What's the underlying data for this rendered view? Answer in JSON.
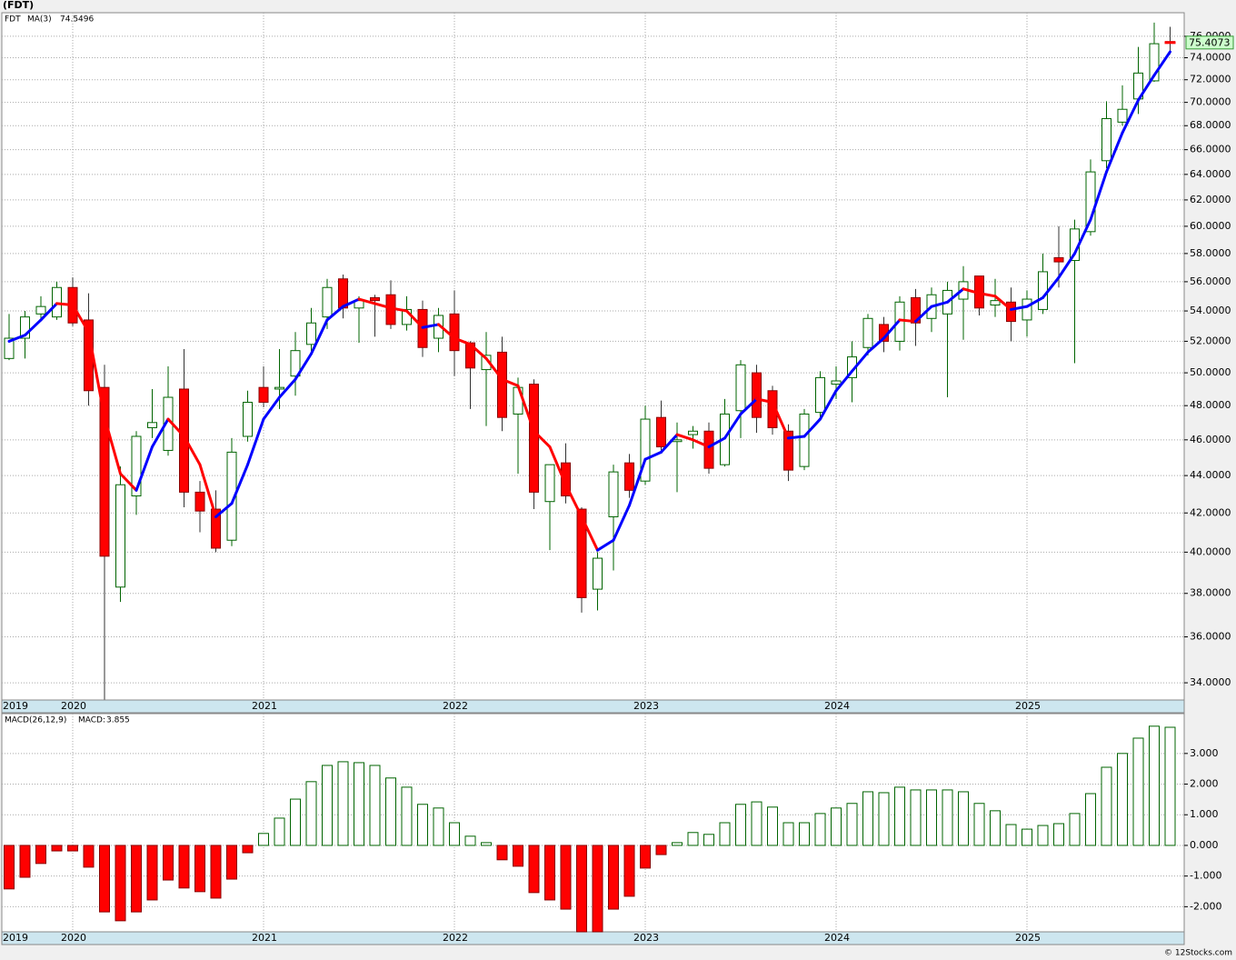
{
  "chart_data": [
    {
      "type": "candlestick",
      "title": "(FDT)",
      "log": true,
      "grid": true,
      "categories": [
        "2019",
        null,
        null,
        null,
        "2020",
        null,
        null,
        null,
        null,
        null,
        null,
        null,
        null,
        null,
        null,
        null,
        "2021",
        null,
        null,
        null,
        null,
        null,
        null,
        null,
        null,
        null,
        null,
        null,
        "2022",
        null,
        null,
        null,
        null,
        null,
        null,
        null,
        null,
        null,
        null,
        null,
        "2023",
        null,
        null,
        null,
        null,
        null,
        null,
        null,
        null,
        null,
        null,
        null,
        "2024",
        null,
        null,
        null,
        null,
        null,
        null,
        null,
        null,
        null,
        null,
        null,
        "2025",
        null,
        null,
        null,
        null,
        null,
        null,
        null,
        null,
        null
      ],
      "ylim": [
        33.28,
        78.26
      ],
      "yticks": [
        {
          "value": 34,
          "label": "34.0000"
        },
        {
          "value": 36,
          "label": "36.0000"
        },
        {
          "value": 38,
          "label": "38.0000"
        },
        {
          "value": 40,
          "label": "40.0000"
        },
        {
          "value": 42,
          "label": "42.0000"
        },
        {
          "value": 44,
          "label": "44.0000"
        },
        {
          "value": 46,
          "label": "46.0000"
        },
        {
          "value": 48,
          "label": "48.0000"
        },
        {
          "value": 50,
          "label": "50.0000"
        },
        {
          "value": 52,
          "label": "52.0000"
        },
        {
          "value": 54,
          "label": "54.0000"
        },
        {
          "value": 56,
          "label": "56.0000"
        },
        {
          "value": 58,
          "label": "58.0000"
        },
        {
          "value": 60,
          "label": "60.0000"
        },
        {
          "value": 62,
          "label": "62.0000"
        },
        {
          "value": 64,
          "label": "64.0000"
        },
        {
          "value": 66,
          "label": "66.0000"
        },
        {
          "value": 68,
          "label": "68.0000"
        },
        {
          "value": 70,
          "label": "70.0000"
        },
        {
          "value": 72,
          "label": "72.0000"
        },
        {
          "value": 74,
          "label": "74.0000"
        },
        {
          "value": 76,
          "label": "76.0000"
        }
      ],
      "series": [
        {
          "name": "FDT",
          "color": "#006400",
          "down_color": "#ff0000",
          "open": [
            50.9,
            52.2,
            53.8,
            53.6,
            55.6,
            53.4,
            49.1,
            38.3,
            42.9,
            46.7,
            45.4,
            49,
            43.1,
            42.2,
            40.6,
            46.2,
            49.1,
            49,
            49.8,
            51.8,
            53.6,
            56.2,
            54.2,
            54.9,
            55.1,
            53.1,
            54.1,
            52.2,
            53.8,
            51.9,
            50.2,
            51.3,
            47.5,
            49.3,
            42.6,
            44.7,
            42.2,
            38.2,
            41.8,
            44.7,
            43.7,
            47.3,
            45.9,
            46.3,
            46.5,
            44.6,
            47.7,
            50,
            48.9,
            46.5,
            44.5,
            47.6,
            49.3,
            49.7,
            51.6,
            53.1,
            52,
            54.9,
            53.5,
            53.8,
            54.8,
            56.4,
            54.4,
            54.6,
            53.4,
            54.1,
            57.7,
            57.5,
            59.6,
            65.1,
            68.3,
            70.3,
            71.9,
            75.5
          ],
          "high": [
            53.8,
            54,
            55,
            56,
            56.3,
            55.2,
            50.5,
            44.5,
            46.5,
            49,
            50.4,
            51.5,
            43.7,
            43.2,
            46.1,
            48.9,
            50.4,
            51.5,
            52.6,
            54.2,
            56.2,
            56.5,
            55,
            55.1,
            56.1,
            55,
            54.7,
            54.2,
            55.4,
            52,
            52.6,
            52.3,
            49.7,
            49.6,
            44.6,
            45.8,
            42.3,
            40,
            44.6,
            45.2,
            48,
            48.3,
            47,
            46.8,
            47,
            48.4,
            50.8,
            50.5,
            49.2,
            46.9,
            47.8,
            50.1,
            50.4,
            52,
            53.8,
            53.6,
            55,
            55.5,
            55.6,
            56,
            57.1,
            56.4,
            56.2,
            55.6,
            55.4,
            58,
            60,
            60.5,
            65.2,
            70.1,
            71.5,
            75,
            77.3,
            76.9
          ],
          "low": [
            50.8,
            50.9,
            53.3,
            53.4,
            53,
            48,
            33.3,
            37.6,
            41.9,
            46.1,
            45.1,
            42.3,
            41,
            40,
            40.3,
            45.9,
            47.9,
            47.8,
            48.6,
            51.3,
            52.8,
            53.5,
            51.9,
            52.3,
            52.8,
            52.7,
            51,
            51.3,
            49.8,
            47.8,
            46.8,
            46.5,
            44.1,
            42.2,
            40.1,
            42.5,
            37.1,
            37.2,
            39.1,
            42.8,
            43.5,
            45.3,
            43.1,
            45.5,
            44.1,
            44.5,
            46.1,
            46.4,
            46.3,
            43.7,
            44.3,
            47.2,
            48.4,
            48.2,
            51.1,
            51.3,
            51.4,
            51.7,
            52.6,
            48.5,
            52.1,
            53.7,
            53.6,
            52,
            52.3,
            53.8,
            55.6,
            50.6,
            59.3,
            64.5,
            68,
            69,
            71.8,
            74.3
          ],
          "close": [
            52.2,
            53.6,
            54.3,
            55.6,
            53.2,
            48.9,
            39.8,
            43.5,
            46.2,
            47,
            48.5,
            43.1,
            42.1,
            40.2,
            45.3,
            48.2,
            48.2,
            49.1,
            51.4,
            53.2,
            55.6,
            54.2,
            54.7,
            54.7,
            53.1,
            54.1,
            51.6,
            53.7,
            51.4,
            50.3,
            51.1,
            47.3,
            49.1,
            43.1,
            44.6,
            42.9,
            37.8,
            39.7,
            44.2,
            43.2,
            47.2,
            45.6,
            46,
            46.5,
            44.4,
            47.5,
            50.5,
            47.3,
            46.7,
            44.3,
            47.5,
            49.7,
            49.5,
            51,
            53.5,
            52,
            54.6,
            53.2,
            55.1,
            55.4,
            56,
            54.2,
            54.7,
            53.3,
            54.8,
            56.7,
            57.4,
            59.8,
            64.2,
            68.6,
            69.4,
            72.6,
            75.3,
            75.4073
          ]
        },
        {
          "name": "MA(3)",
          "color": "#0000ff",
          "down_color": "#ff0000",
          "values": [
            52,
            52.4,
            53.4,
            54.5,
            54.4,
            52.6,
            47.3,
            44.1,
            43.2,
            45.6,
            47.2,
            46.2,
            44.6,
            41.8,
            42.5,
            44.6,
            47.2,
            48.5,
            49.6,
            51.2,
            53.4,
            54.3,
            54.8,
            54.5,
            54.2,
            54,
            52.9,
            53.1,
            52.2,
            51.8,
            50.9,
            49.6,
            49.2,
            46.5,
            45.6,
            43.5,
            41.8,
            40.1,
            40.6,
            42.4,
            44.9,
            45.3,
            46.3,
            46,
            45.6,
            46.1,
            47.5,
            48.4,
            48.2,
            46.1,
            46.2,
            47.2,
            48.9,
            50.1,
            51.3,
            52.2,
            53.4,
            53.3,
            54.3,
            54.6,
            55.5,
            55.2,
            55,
            54.1,
            54.3,
            54.9,
            56.3,
            58,
            60.5,
            64.2,
            67.4,
            70.2,
            72.4,
            74.5496
          ]
        }
      ]
    },
    {
      "type": "bar",
      "grid": true,
      "categories": [
        "2019",
        null,
        null,
        null,
        "2020",
        null,
        null,
        null,
        null,
        null,
        null,
        null,
        null,
        null,
        null,
        null,
        "2021",
        null,
        null,
        null,
        null,
        null,
        null,
        null,
        null,
        null,
        null,
        null,
        "2022",
        null,
        null,
        null,
        null,
        null,
        null,
        null,
        null,
        null,
        null,
        null,
        "2023",
        null,
        null,
        null,
        null,
        null,
        null,
        null,
        null,
        null,
        null,
        null,
        "2024",
        null,
        null,
        null,
        null,
        null,
        null,
        null,
        null,
        null,
        null,
        null,
        "2025",
        null,
        null,
        null,
        null,
        null,
        null,
        null,
        null,
        null
      ],
      "ylim": [
        -2.82,
        4.3
      ],
      "yticks": [
        {
          "value": -2,
          "label": "-2.000"
        },
        {
          "value": -1,
          "label": "-1.000"
        },
        {
          "value": 0,
          "label": "0.000"
        },
        {
          "value": 1,
          "label": "1.000"
        },
        {
          "value": 2,
          "label": "2.000"
        },
        {
          "value": 3,
          "label": "3.000"
        }
      ],
      "series": [
        {
          "name": "MACD(26,12,9)",
          "value_prefix": "MACD:",
          "color": "#006400",
          "down_color": "#ff0000",
          "values": [
            -1.42,
            -1.04,
            -0.59,
            -0.18,
            -0.18,
            -0.71,
            -2.17,
            -2.46,
            -2.17,
            -1.78,
            -1.13,
            -1.39,
            -1.51,
            -1.72,
            -1.1,
            -0.24,
            0.39,
            0.89,
            1.51,
            2.08,
            2.61,
            2.73,
            2.7,
            2.61,
            2.2,
            1.9,
            1.34,
            1.22,
            0.74,
            0.3,
            0.09,
            -0.47,
            -0.68,
            -1.54,
            -1.78,
            -2.08,
            -2.82,
            -2.82,
            -2.08,
            -1.66,
            -0.74,
            -0.3,
            0.09,
            0.42,
            0.36,
            0.74,
            1.34,
            1.42,
            1.25,
            0.74,
            0.74,
            1.04,
            1.22,
            1.37,
            1.75,
            1.72,
            1.9,
            1.81,
            1.81,
            1.81,
            1.75,
            1.37,
            1.13,
            0.68,
            0.53,
            0.65,
            0.71,
            1.04,
            1.69,
            2.55,
            3,
            3.5,
            3.89,
            3.855
          ]
        }
      ]
    }
  ],
  "footer": "© 12Stocks.com"
}
